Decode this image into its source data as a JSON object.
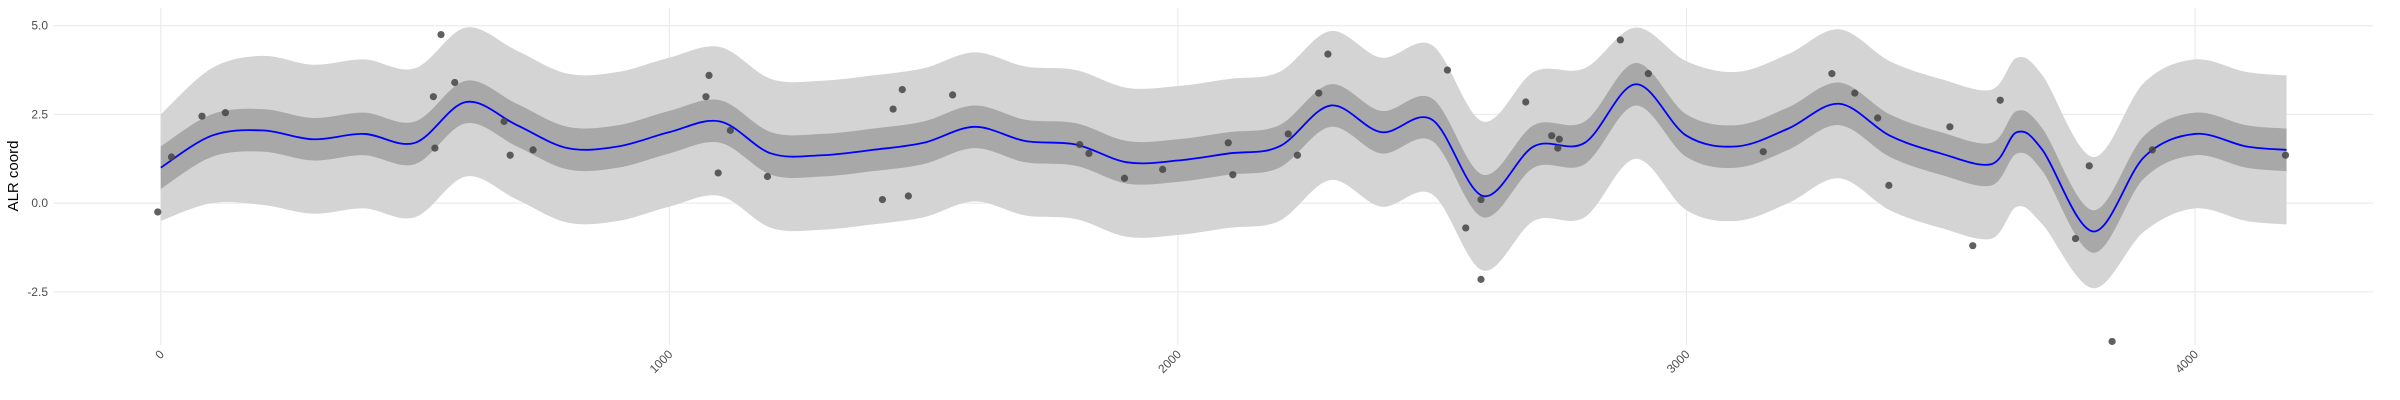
{
  "chart_data": {
    "type": "line",
    "ylabel": "ALR coord",
    "x": [
      0,
      100,
      200,
      300,
      400,
      500,
      600,
      700,
      800,
      900,
      1000,
      1100,
      1200,
      1300,
      1400,
      1500,
      1600,
      1700,
      1800,
      1900,
      2000,
      2100,
      2200,
      2300,
      2400,
      2500,
      2600,
      2700,
      2800,
      2900,
      3000,
      3100,
      3200,
      3300,
      3400,
      3500,
      3600,
      3650,
      3700,
      3800,
      3900,
      4000,
      4100,
      4180
    ],
    "mean": [
      1.0,
      1.9,
      2.05,
      1.8,
      1.95,
      1.7,
      2.85,
      2.2,
      1.55,
      1.6,
      2.0,
      2.3,
      1.4,
      1.35,
      1.5,
      1.7,
      2.15,
      1.75,
      1.65,
      1.15,
      1.2,
      1.4,
      1.6,
      2.75,
      2.0,
      2.35,
      0.2,
      1.6,
      1.7,
      3.35,
      1.9,
      1.6,
      2.1,
      2.8,
      1.9,
      1.4,
      1.1,
      2.0,
      1.5,
      -0.8,
      1.3,
      1.95,
      1.6,
      1.5
    ],
    "inner_lower": [
      0.4,
      1.3,
      1.45,
      1.2,
      1.35,
      1.1,
      2.25,
      1.6,
      0.95,
      1.0,
      1.4,
      1.7,
      0.8,
      0.75,
      0.9,
      1.1,
      1.55,
      1.15,
      1.05,
      0.55,
      0.6,
      0.8,
      1.0,
      2.15,
      1.4,
      1.75,
      -0.4,
      1.0,
      1.1,
      2.75,
      1.3,
      1.0,
      1.5,
      2.2,
      1.3,
      0.8,
      0.5,
      1.4,
      0.9,
      -1.4,
      0.7,
      1.35,
      1.0,
      0.9
    ],
    "inner_upper": [
      1.6,
      2.5,
      2.65,
      2.4,
      2.55,
      2.3,
      3.45,
      2.8,
      2.15,
      2.2,
      2.6,
      2.9,
      2.0,
      1.95,
      2.1,
      2.3,
      2.75,
      2.35,
      2.25,
      1.75,
      1.8,
      2.0,
      2.2,
      3.35,
      2.6,
      2.95,
      0.8,
      2.2,
      2.3,
      3.95,
      2.5,
      2.2,
      2.7,
      3.4,
      2.5,
      2.0,
      1.7,
      2.6,
      2.1,
      -0.2,
      1.9,
      2.55,
      2.2,
      2.1
    ],
    "outer_lower": [
      -0.5,
      0.0,
      -0.05,
      -0.3,
      -0.15,
      -0.4,
      0.75,
      0.1,
      -0.55,
      -0.5,
      -0.1,
      0.2,
      -0.7,
      -0.75,
      -0.6,
      -0.4,
      0.05,
      -0.35,
      -0.45,
      -0.95,
      -0.9,
      -0.7,
      -0.5,
      0.65,
      -0.1,
      0.25,
      -1.9,
      -0.5,
      -0.4,
      1.25,
      -0.2,
      -0.5,
      0.0,
      0.7,
      -0.2,
      -0.7,
      -1.0,
      -0.1,
      -0.6,
      -2.4,
      -0.8,
      -0.15,
      -0.5,
      -0.6
    ],
    "outer_upper": [
      2.5,
      3.8,
      4.15,
      3.9,
      4.05,
      3.8,
      4.95,
      4.3,
      3.65,
      3.7,
      4.1,
      4.4,
      3.5,
      3.45,
      3.6,
      3.8,
      4.25,
      3.85,
      3.75,
      3.25,
      3.3,
      3.5,
      3.7,
      4.85,
      4.1,
      4.45,
      2.3,
      3.7,
      3.8,
      4.95,
      4.0,
      3.7,
      4.2,
      4.9,
      4.0,
      3.5,
      3.2,
      4.1,
      3.6,
      1.3,
      3.4,
      4.05,
      3.7,
      3.6
    ],
    "points": {
      "x": [
        -6,
        21,
        81,
        127,
        536,
        551,
        539,
        578,
        675,
        687,
        732,
        1078,
        1072,
        1096,
        1120,
        1193,
        1419,
        1440,
        1458,
        1470,
        1557,
        1807,
        1825,
        1895,
        1970,
        2099,
        2108,
        2217,
        2235,
        2277,
        2295,
        2530,
        2566,
        2596,
        2596,
        2684,
        2735,
        2747,
        2750,
        2870,
        2925,
        3151,
        3286,
        3331,
        3376,
        3398,
        3518,
        3563,
        3617,
        3765,
        3792,
        3837,
        3916,
        4178
      ],
      "y": [
        -0.25,
        1.3,
        2.45,
        2.55,
        3.0,
        4.75,
        1.55,
        3.4,
        2.3,
        1.35,
        1.5,
        3.6,
        3.0,
        0.85,
        2.05,
        0.75,
        0.1,
        2.65,
        3.2,
        0.2,
        3.05,
        1.65,
        1.4,
        0.7,
        0.95,
        1.7,
        0.8,
        1.95,
        1.35,
        3.1,
        4.2,
        3.75,
        -0.7,
        -2.15,
        0.1,
        2.85,
        1.9,
        1.55,
        1.8,
        4.6,
        3.65,
        1.45,
        3.65,
        3.1,
        2.4,
        0.5,
        2.15,
        -1.2,
        2.9,
        -1.0,
        1.05,
        -3.9,
        1.5,
        1.35
      ]
    },
    "line_color": "#0000ff",
    "inner_color": "#a8a8a8",
    "outer_color": "#d4d4d4",
    "point_color": "#444444",
    "xlim": [
      -210,
      4350
    ],
    "ylim": [
      -4.0,
      5.5
    ],
    "xticks": [
      0,
      1000,
      2000,
      3000,
      4000
    ],
    "yticks": [
      {
        "value": 5,
        "label": "5.0"
      },
      2.5,
      {
        "value": 0,
        "label": "0.0"
      },
      -2.5
    ],
    "grid": true
  }
}
